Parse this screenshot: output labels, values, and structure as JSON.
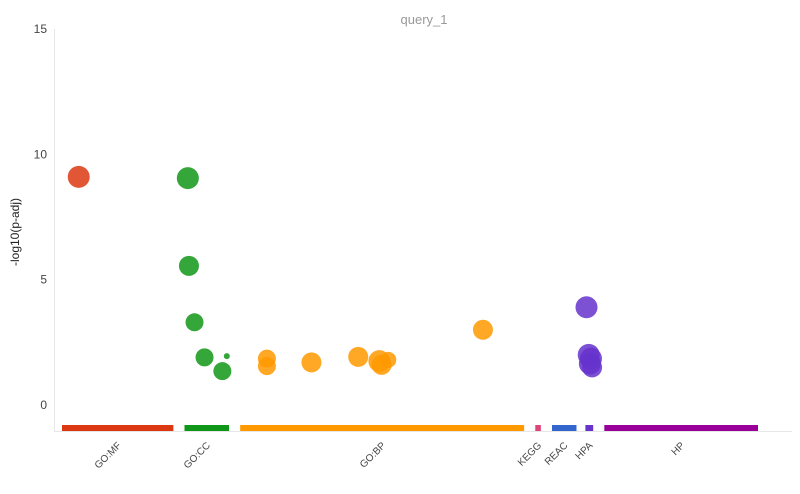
{
  "chart_data": {
    "type": "scatter",
    "title": "query_1",
    "ylabel": "-log10(p-adj)",
    "ylim": [
      0,
      15
    ],
    "yticks": [
      "0",
      "5",
      "10",
      "15"
    ],
    "grid": false,
    "sources": [
      {
        "name": "GO:MF",
        "color": "#dc3912",
        "range": [
          0,
          1
        ]
      },
      {
        "name": "GO:CC",
        "color": "#109618",
        "range": [
          1.1,
          1.5
        ]
      },
      {
        "name": "GO:BP",
        "color": "#ff9900",
        "range": [
          1.6,
          4.15
        ]
      },
      {
        "name": "KEGG",
        "color": "#dd4477",
        "range": [
          4.25,
          4.3
        ]
      },
      {
        "name": "REAC",
        "color": "#3366cc",
        "range": [
          4.4,
          4.62
        ]
      },
      {
        "name": "HPA",
        "color": "#6633cc",
        "range": [
          4.7,
          4.77
        ]
      },
      {
        "name": "HP",
        "color": "#990099",
        "range": [
          4.87,
          6.25
        ]
      }
    ],
    "points": [
      {
        "source": "GO:MF",
        "x": 0.15,
        "y": 9.1,
        "size": 11
      },
      {
        "source": "GO:CC",
        "x": 1.13,
        "y": 9.05,
        "size": 11
      },
      {
        "source": "GO:CC",
        "x": 1.14,
        "y": 5.55,
        "size": 10
      },
      {
        "source": "GO:CC",
        "x": 1.19,
        "y": 3.3,
        "size": 9
      },
      {
        "source": "GO:CC",
        "x": 1.28,
        "y": 1.9,
        "size": 9
      },
      {
        "source": "GO:CC",
        "x": 1.44,
        "y": 1.35,
        "size": 9
      },
      {
        "source": "GO:CC",
        "x": 1.48,
        "y": 1.95,
        "size": 3
      },
      {
        "source": "GO:BP",
        "x": 1.84,
        "y": 1.85,
        "size": 9
      },
      {
        "source": "GO:BP",
        "x": 1.84,
        "y": 1.55,
        "size": 9
      },
      {
        "source": "GO:BP",
        "x": 2.24,
        "y": 1.7,
        "size": 10
      },
      {
        "source": "GO:BP",
        "x": 2.66,
        "y": 1.92,
        "size": 10
      },
      {
        "source": "GO:BP",
        "x": 2.85,
        "y": 1.75,
        "size": 11
      },
      {
        "source": "GO:BP",
        "x": 2.87,
        "y": 1.6,
        "size": 10
      },
      {
        "source": "GO:BP",
        "x": 2.93,
        "y": 1.8,
        "size": 8
      },
      {
        "source": "GO:BP",
        "x": 3.78,
        "y": 3.0,
        "size": 10
      },
      {
        "source": "HPA",
        "x": 4.71,
        "y": 3.9,
        "size": 11
      },
      {
        "source": "HPA",
        "x": 4.73,
        "y": 2.0,
        "size": 11
      },
      {
        "source": "HPA",
        "x": 4.75,
        "y": 1.85,
        "size": 11
      },
      {
        "source": "HPA",
        "x": 4.74,
        "y": 1.65,
        "size": 11
      },
      {
        "source": "HPA",
        "x": 4.76,
        "y": 1.5,
        "size": 10
      }
    ]
  }
}
